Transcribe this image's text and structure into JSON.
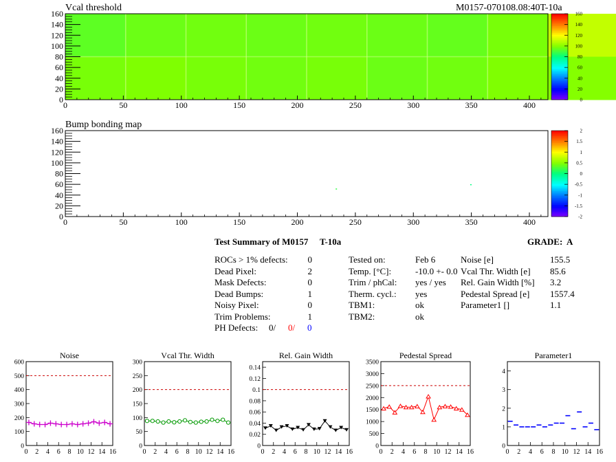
{
  "header": {
    "plot1_title": "Vcal threshold",
    "module_id": "M0157-070108.08:40T-10a",
    "plot2_title": "Bump bonding map"
  },
  "summary": {
    "title": "Test Summary of M0157",
    "temp_tag": "T-10a",
    "grade_label": "GRADE:",
    "grade_value": "A",
    "defects": [
      {
        "label": "ROCs > 1% defects:",
        "value": "0"
      },
      {
        "label": "Dead Pixel:",
        "value": "2"
      },
      {
        "label": "Mask Defects:",
        "value": "0"
      },
      {
        "label": "Dead Bumps:",
        "value": "1"
      },
      {
        "label": "Noisy Pixel:",
        "value": "0"
      },
      {
        "label": "Trim Problems:",
        "value": "1"
      }
    ],
    "ph_defects": {
      "label": "PH Defects:",
      "v1": "0/",
      "v2": "0/",
      "v3": "0",
      "c2": "#ff0000",
      "c3": "#0000ff"
    },
    "conditions": [
      {
        "label": "Tested on:",
        "value": "Feb 6"
      },
      {
        "label": "Temp. [°C]:",
        "value": "-10.0 +- 0.0"
      },
      {
        "label": "Trim / phCal:",
        "value": "yes / yes"
      },
      {
        "label": "Therm. cycl.:",
        "value": "yes"
      },
      {
        "label": "TBM1:",
        "value": "ok"
      },
      {
        "label": "TBM2:",
        "value": "ok"
      }
    ],
    "measurements": [
      {
        "label": "Noise [e]",
        "value": "155.5"
      },
      {
        "label": "Vcal Thr. Width [e]",
        "value": "85.6"
      },
      {
        "label": "Rel. Gain Width [%]",
        "value": "3.2"
      },
      {
        "label": "Pedestal Spread [e]",
        "value": "1557.4"
      },
      {
        "label": "Parameter1 []",
        "value": "1.1"
      }
    ]
  },
  "chart_data": [
    {
      "type": "heatmap",
      "title": "Vcal threshold",
      "xlim": [
        0,
        416
      ],
      "ylim": [
        0,
        160
      ],
      "xticks": [
        0,
        50,
        100,
        150,
        200,
        250,
        300,
        350,
        400
      ],
      "yticks": [
        0,
        20,
        40,
        60,
        80,
        100,
        120,
        140,
        160
      ],
      "zlim": [
        0,
        160
      ],
      "colorbar_ticks": [
        0,
        20,
        40,
        60,
        80,
        100,
        120,
        140,
        160
      ],
      "roc_means": {
        "top": [
          94,
          96,
          97,
          96,
          97,
          96,
          95,
          98,
          110,
          110,
          110,
          110,
          111,
          111,
          111,
          111
        ],
        "bottom": [
          100,
          104,
          100,
          97,
          98,
          100,
          100,
          100,
          99,
          97,
          96,
          98,
          97,
          98,
          99,
          98
        ]
      }
    },
    {
      "type": "heatmap",
      "title": "Bump bonding map",
      "xlim": [
        0,
        416
      ],
      "ylim": [
        0,
        160
      ],
      "xticks": [
        0,
        50,
        100,
        150,
        200,
        250,
        300,
        350,
        400
      ],
      "yticks": [
        0,
        20,
        40,
        60,
        80,
        100,
        120,
        140,
        160
      ],
      "zlim": [
        -2,
        2
      ],
      "colorbar_ticks": [
        -2,
        -1.5,
        -1,
        -0.5,
        0,
        0.5,
        1,
        1.5,
        2
      ],
      "points": [
        {
          "x": 233,
          "y": 51,
          "z": 0.2
        },
        {
          "x": 349,
          "y": 59,
          "z": 0.0
        }
      ]
    },
    {
      "type": "line",
      "title": "Noise",
      "color": "#cc00cc",
      "marker": "cross",
      "x": [
        0,
        1,
        2,
        3,
        4,
        5,
        6,
        7,
        8,
        9,
        10,
        11,
        12,
        13,
        14,
        15
      ],
      "values": [
        165,
        155,
        150,
        150,
        160,
        155,
        150,
        150,
        155,
        150,
        155,
        160,
        170,
        160,
        165,
        155
      ],
      "ylim": [
        0,
        600
      ],
      "yticks": [
        0,
        100,
        200,
        300,
        400,
        500,
        600
      ],
      "xticks": [
        0,
        2,
        4,
        6,
        8,
        10,
        12,
        14,
        16
      ],
      "xlim": [
        0,
        16
      ],
      "ref_line": 500
    },
    {
      "type": "line",
      "title": "Vcal Thr. Width",
      "color": "#009900",
      "marker": "circle",
      "x": [
        0,
        1,
        2,
        3,
        4,
        5,
        6,
        7,
        8,
        9,
        10,
        11,
        12,
        13,
        14,
        15
      ],
      "values": [
        88,
        88,
        86,
        82,
        86,
        83,
        86,
        90,
        84,
        82,
        85,
        86,
        92,
        88,
        92,
        82
      ],
      "ylim": [
        0,
        300
      ],
      "yticks": [
        0,
        50,
        100,
        150,
        200,
        250,
        300
      ],
      "xticks": [
        0,
        2,
        4,
        6,
        8,
        10,
        12,
        14,
        16
      ],
      "xlim": [
        0,
        16
      ],
      "ref_line": 200
    },
    {
      "type": "line",
      "title": "Rel. Gain Width",
      "color": "#000000",
      "marker": "triangle-down",
      "x": [
        0,
        1,
        2,
        3,
        4,
        5,
        6,
        7,
        8,
        9,
        10,
        11,
        12,
        13,
        14,
        15
      ],
      "values": [
        0.031,
        0.035,
        0.027,
        0.033,
        0.035,
        0.029,
        0.032,
        0.028,
        0.037,
        0.029,
        0.03,
        0.044,
        0.033,
        0.027,
        0.032,
        0.028
      ],
      "ylim": [
        0,
        0.15
      ],
      "yticks": [
        0,
        0.02,
        0.04,
        0.06,
        0.08,
        0.1,
        0.12,
        0.14
      ],
      "xticks": [
        0,
        2,
        4,
        6,
        8,
        10,
        12,
        14,
        16
      ],
      "xlim": [
        0,
        16
      ],
      "ref_line": 0.1
    },
    {
      "type": "line",
      "title": "Pedestal Spread",
      "color": "#ff0000",
      "marker": "triangle-up",
      "x": [
        0,
        1,
        2,
        3,
        4,
        5,
        6,
        7,
        8,
        9,
        10,
        11,
        12,
        13,
        14,
        15
      ],
      "values": [
        1550,
        1620,
        1380,
        1650,
        1600,
        1600,
        1640,
        1400,
        2050,
        1080,
        1600,
        1640,
        1620,
        1550,
        1500,
        1280
      ],
      "ylim": [
        0,
        3500
      ],
      "yticks": [
        0,
        500,
        1000,
        1500,
        2000,
        2500,
        3000,
        3500
      ],
      "xticks": [
        0,
        2,
        4,
        6,
        8,
        10,
        12,
        14,
        16
      ],
      "xlim": [
        0,
        16
      ],
      "ref_line": 2500
    },
    {
      "type": "scatter",
      "title": "Parameter1",
      "color": "#0000ff",
      "marker": "hline",
      "x": [
        0,
        1,
        2,
        3,
        4,
        5,
        6,
        7,
        8,
        9,
        10,
        11,
        12,
        13,
        14,
        15
      ],
      "values": [
        1.3,
        1.1,
        1.0,
        1.0,
        1.0,
        1.1,
        1.0,
        1.1,
        1.2,
        1.2,
        1.6,
        0.9,
        1.8,
        1.0,
        1.2,
        0.85
      ],
      "ylim": [
        0,
        4.5
      ],
      "yticks": [
        0,
        1,
        2,
        3,
        4
      ],
      "xticks": [
        0,
        2,
        4,
        6,
        8,
        10,
        12,
        14,
        16
      ],
      "xlim": [
        0,
        16
      ]
    }
  ]
}
